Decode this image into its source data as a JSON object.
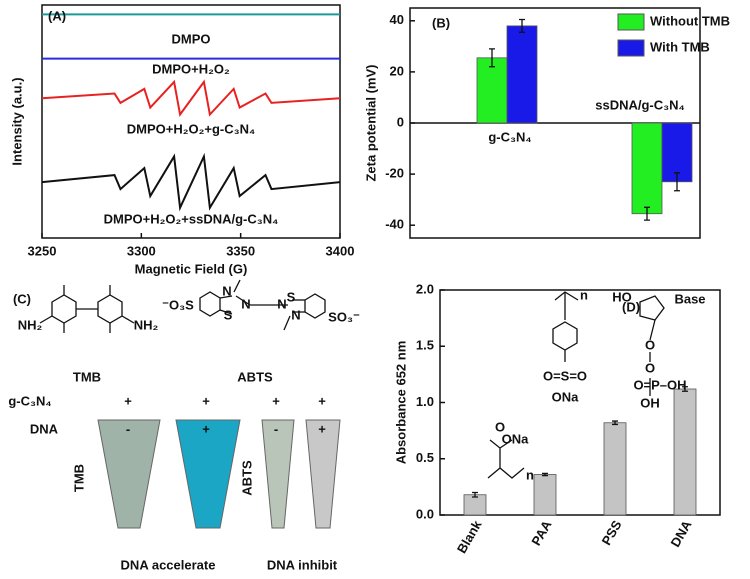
{
  "chart_data": [
    {
      "type": "line",
      "label": "(A)",
      "x_label": "Magnetic Field (G)",
      "y_label": "Intensity (a.u.)",
      "xlim": [
        3250,
        3400
      ],
      "xticks": [
        3250,
        3300,
        3350,
        3400
      ],
      "ylim": [
        0,
        100
      ],
      "series": [
        {
          "name": "DMPO",
          "color": "#1a9a9a",
          "x": [
            3250,
            3400
          ],
          "values": [
            96,
            96
          ]
        },
        {
          "name": "DMPO+H₂O₂",
          "color": "#2a2ae0",
          "x": [
            3250,
            3400
          ],
          "values": [
            77,
            77
          ]
        },
        {
          "name": "DMPO+H₂O₂+g-C₃N₄",
          "color": "#e82222",
          "x": [
            3250,
            3286.5,
            3289.5,
            3301.5,
            3304.5,
            3316.5,
            3319.5,
            3331.5,
            3334.5,
            3346.5,
            3349.5,
            3362.5,
            3365.5,
            3400
          ],
          "values": [
            60,
            62,
            58,
            64,
            56,
            67,
            53,
            67,
            53,
            64,
            56,
            62,
            58,
            60
          ]
        },
        {
          "name": "DMPO+H₂O₂+ssDNA/g-C₃N₄",
          "color": "#111111",
          "x": [
            3250,
            3286.5,
            3289.5,
            3301.5,
            3304.5,
            3316.5,
            3319.5,
            3331.5,
            3334.5,
            3346.5,
            3349.5,
            3362.5,
            3365.5,
            3400
          ],
          "values": [
            24,
            27,
            21,
            30,
            18,
            35,
            13,
            35,
            13,
            30,
            18,
            27,
            21,
            24
          ]
        }
      ]
    },
    {
      "type": "bar",
      "label": "(B)",
      "y_label": "Zeta potential (mV)",
      "categories": [
        "g-C₃N₄",
        "ssDNA/g-C₃N₄"
      ],
      "ylim": [
        -45,
        45
      ],
      "yticks": [
        -40,
        -20,
        0,
        20,
        40
      ],
      "legend": "top-right",
      "series": [
        {
          "name": "Without TMB",
          "color": "#22ee22",
          "values": [
            25.5,
            -35.5
          ],
          "errors": [
            3.5,
            2.5
          ]
        },
        {
          "name": "With TMB",
          "color": "#1a1ae8",
          "values": [
            38,
            -23
          ],
          "errors": [
            2.5,
            3.5
          ]
        }
      ]
    },
    {
      "type": "bar",
      "label": "(D)",
      "y_label": "Absorbance 652 nm",
      "categories": [
        "Blank",
        "PAA",
        "PSS",
        "DNA"
      ],
      "color": "#c4c4c4",
      "values": [
        0.18,
        0.36,
        0.82,
        1.12
      ],
      "errors": [
        0.02,
        0.01,
        0.015,
        0.02
      ],
      "ylim": [
        0,
        2.0
      ],
      "yticks": [
        {
          "value": 0,
          "label": "0.0"
        },
        {
          "value": 0.5,
          "label": "0.5"
        },
        {
          "value": 1.0,
          "label": "1.0"
        },
        {
          "value": 1.5,
          "label": "1.5"
        },
        {
          "value": 2.0,
          "label": "2.0"
        }
      ],
      "annotations": [
        "O",
        "ONa",
        "n",
        "n",
        "O=S=O",
        "ONa",
        "HO",
        "O",
        "Base",
        "O",
        "O=P–OH",
        "OH"
      ]
    }
  ],
  "panel_c": {
    "label": "(C)",
    "molecules": [
      "TMB",
      "ABTS"
    ],
    "atoms": [
      "NH₂",
      "NH₂",
      "⁻O₃S",
      "SO₃⁻",
      "N",
      "N",
      "S",
      "S",
      "N",
      "N"
    ],
    "rows": [
      "g-C₃N₄",
      "DNA"
    ],
    "signs": [
      [
        "+",
        "+",
        "+",
        "+"
      ],
      [
        "-",
        "+",
        "-",
        "+"
      ]
    ],
    "tube_labels": [
      "TMB",
      "ABTS"
    ],
    "captions": [
      "DNA accelerate",
      "DNA inhibit"
    ]
  }
}
